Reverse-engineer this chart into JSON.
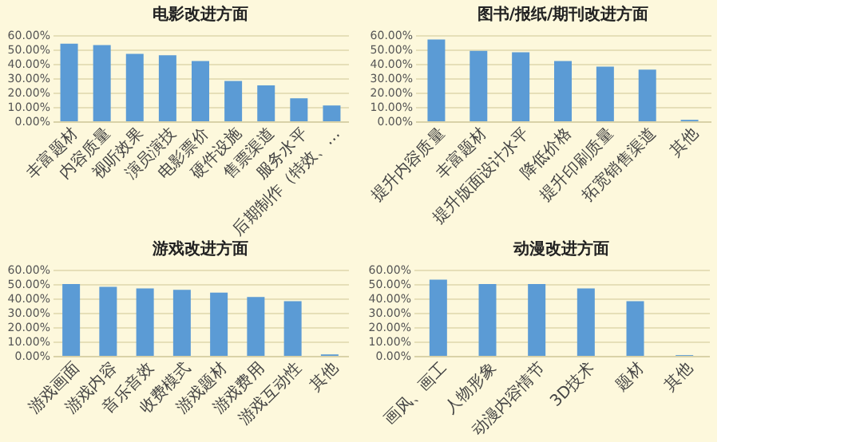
{
  "chart_data": [
    {
      "type": "bar",
      "title": "电影改进方面",
      "categories": [
        "丰富题材",
        "内容质量",
        "视听效果",
        "演员演技",
        "电影票价",
        "硬件设施",
        "售票渠道",
        "服务水平",
        "后期制作（特效、…"
      ],
      "values": [
        54,
        53,
        47,
        46,
        42,
        28,
        25,
        16,
        11
      ],
      "color": "#5b9bd5",
      "ylim": [
        0,
        60
      ],
      "yticks": [
        {
          "value": 0,
          "label": "0.00%"
        },
        {
          "value": 10,
          "label": "10.00%"
        },
        {
          "value": 20,
          "label": "20.00%"
        },
        {
          "value": 30,
          "label": "30.00%"
        },
        {
          "value": 40,
          "label": "40.00%"
        },
        {
          "value": 50,
          "label": "50.00%"
        },
        {
          "value": 60,
          "label": "60.00%"
        }
      ],
      "grid": "y"
    },
    {
      "type": "bar",
      "title": "图书/报纸/期刊改进方面",
      "categories": [
        "提升内容质量",
        "丰富题材",
        "提升版面设计水平",
        "降低价格",
        "提升印刷质量",
        "拓宽销售渠道",
        "其他"
      ],
      "values": [
        57,
        49,
        48,
        42,
        38,
        36,
        1
      ],
      "color": "#5b9bd5",
      "ylim": [
        0,
        60
      ],
      "yticks": [
        {
          "value": 0,
          "label": "0.00%"
        },
        {
          "value": 10,
          "label": "10.00%"
        },
        {
          "value": 20,
          "label": "20.00%"
        },
        {
          "value": 30,
          "label": "30.00%"
        },
        {
          "value": 40,
          "label": "40.00%"
        },
        {
          "value": 50,
          "label": "50.00%"
        },
        {
          "value": 60,
          "label": "60.00%"
        }
      ],
      "grid": "y"
    },
    {
      "type": "bar",
      "title": "游戏改进方面",
      "categories": [
        "游戏画面",
        "游戏内容",
        "音乐音效",
        "收费模式",
        "游戏题材",
        "游戏费用",
        "游戏互动性",
        "其他"
      ],
      "values": [
        50,
        48,
        47,
        46,
        44,
        41,
        38,
        1
      ],
      "color": "#5b9bd5",
      "ylim": [
        0,
        60
      ],
      "yticks": [
        {
          "value": 0,
          "label": "0.00%"
        },
        {
          "value": 10,
          "label": "10.00%"
        },
        {
          "value": 20,
          "label": "20.00%"
        },
        {
          "value": 30,
          "label": "30.00%"
        },
        {
          "value": 40,
          "label": "40.00%"
        },
        {
          "value": 50,
          "label": "50.00%"
        },
        {
          "value": 60,
          "label": "60.00%"
        }
      ],
      "grid": "y"
    },
    {
      "type": "bar",
      "title": "动漫改进方面",
      "categories": [
        "画风、画工",
        "人物形象",
        "动漫内容情节",
        "3D技术",
        "题材",
        "其他"
      ],
      "values": [
        53,
        50,
        50,
        47,
        38,
        0.5
      ],
      "color": "#5b9bd5",
      "ylim": [
        0,
        60
      ],
      "yticks": [
        {
          "value": 0,
          "label": "0.00%"
        },
        {
          "value": 10,
          "label": "10.00%"
        },
        {
          "value": 20,
          "label": "20.00%"
        },
        {
          "value": 30,
          "label": "30.00%"
        },
        {
          "value": 40,
          "label": "40.00%"
        },
        {
          "value": 50,
          "label": "50.00%"
        },
        {
          "value": 60,
          "label": "60.00%"
        }
      ],
      "grid": "y"
    }
  ]
}
